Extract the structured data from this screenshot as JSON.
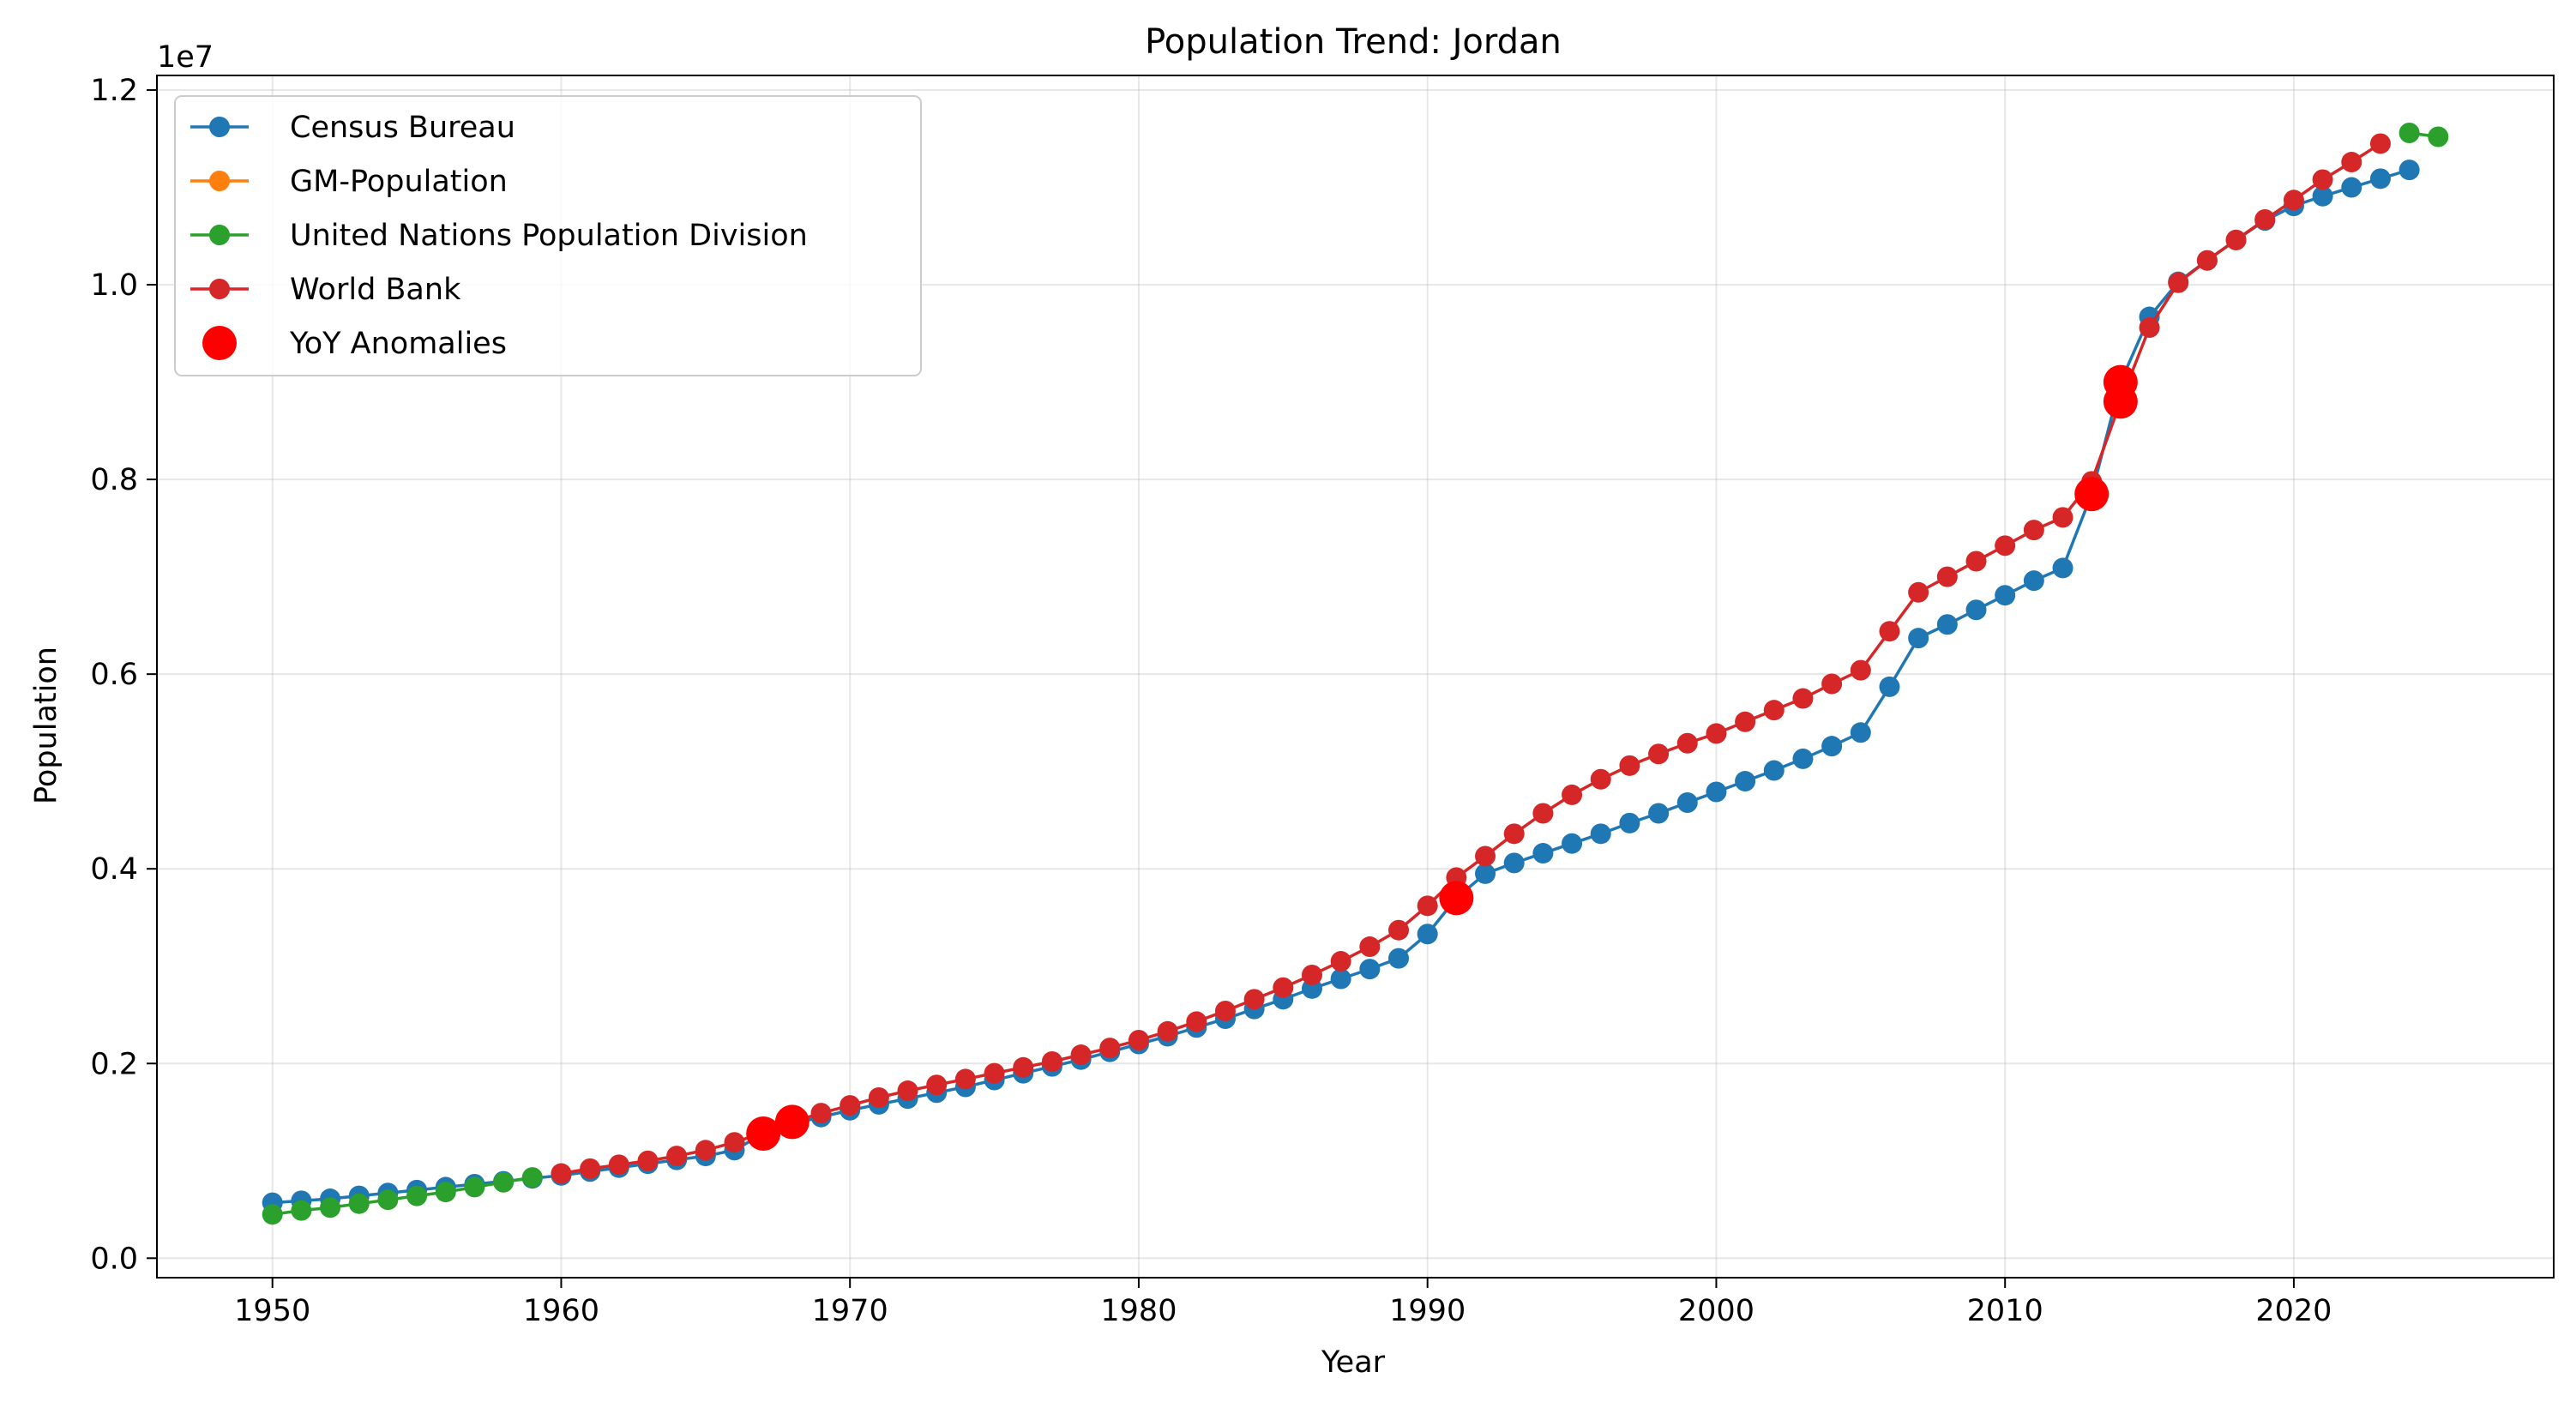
{
  "chart_data": {
    "type": "line",
    "title": "Population Trend: Jordan",
    "xlabel": "Year",
    "ylabel": "Population",
    "y_offset_text": "1e7",
    "xlim": [
      1946,
      2029
    ],
    "ylim": [
      -0.02,
      1.215
    ],
    "y_scale_multiplier": 10000000,
    "grid": true,
    "legend_position": "top-left",
    "x_ticks": [
      1950,
      1960,
      1970,
      1980,
      1990,
      2000,
      2010,
      2020
    ],
    "y_ticks": [
      0.0,
      0.2,
      0.4,
      0.6,
      0.8,
      1.0,
      1.2
    ],
    "y_tick_labels": [
      "0.0",
      "0.2",
      "0.4",
      "0.6",
      "0.8",
      "1.0",
      "1.2"
    ],
    "series": [
      {
        "name": "Census Bureau",
        "color": "#1f77b4",
        "x": [
          1950,
          1951,
          1952,
          1953,
          1954,
          1955,
          1956,
          1957,
          1958,
          1959,
          1960,
          1961,
          1962,
          1963,
          1964,
          1965,
          1966,
          1967,
          1968,
          1969,
          1970,
          1971,
          1972,
          1973,
          1974,
          1975,
          1976,
          1977,
          1978,
          1979,
          1980,
          1981,
          1982,
          1983,
          1984,
          1985,
          1986,
          1987,
          1988,
          1989,
          1990,
          1991,
          1992,
          1993,
          1994,
          1995,
          1996,
          1997,
          1998,
          1999,
          2000,
          2001,
          2002,
          2003,
          2004,
          2005,
          2006,
          2007,
          2008,
          2009,
          2010,
          2011,
          2012,
          2013,
          2014,
          2015,
          2016,
          2017,
          2018,
          2019,
          2020,
          2021,
          2022,
          2023,
          2024
        ],
        "y": [
          0.057,
          0.059,
          0.061,
          0.064,
          0.067,
          0.07,
          0.073,
          0.076,
          0.079,
          0.082,
          0.085,
          0.089,
          0.093,
          0.097,
          0.101,
          0.105,
          0.111,
          0.128,
          0.138,
          0.145,
          0.152,
          0.158,
          0.164,
          0.17,
          0.176,
          0.183,
          0.19,
          0.197,
          0.204,
          0.212,
          0.22,
          0.228,
          0.237,
          0.246,
          0.256,
          0.266,
          0.277,
          0.287,
          0.297,
          0.308,
          0.333,
          0.37,
          0.395,
          0.406,
          0.416,
          0.426,
          0.436,
          0.447,
          0.457,
          0.468,
          0.479,
          0.49,
          0.501,
          0.513,
          0.526,
          0.54,
          0.587,
          0.637,
          0.651,
          0.666,
          0.681,
          0.696,
          0.709,
          0.785,
          0.9,
          0.967,
          1.003,
          1.025,
          1.046,
          1.066,
          1.081,
          1.091,
          1.1,
          1.109,
          1.118
        ]
      },
      {
        "name": "GM-Population",
        "color": "#ff7f0e",
        "x": [],
        "y": []
      },
      {
        "name": "United Nations Population Division",
        "color": "#2ca02c",
        "x": [
          1950,
          1951,
          1952,
          1953,
          1954,
          1955,
          1956,
          1957,
          1958,
          1959,
          2024,
          2025
        ],
        "y": [
          0.045,
          0.049,
          0.052,
          0.056,
          0.06,
          0.064,
          0.068,
          0.073,
          0.078,
          0.083,
          1.156,
          1.152
        ]
      },
      {
        "name": "World Bank",
        "color": "#d62728",
        "x": [
          1960,
          1961,
          1962,
          1963,
          1964,
          1965,
          1966,
          1967,
          1968,
          1969,
          1970,
          1971,
          1972,
          1973,
          1974,
          1975,
          1976,
          1977,
          1978,
          1979,
          1980,
          1981,
          1982,
          1983,
          1984,
          1985,
          1986,
          1987,
          1988,
          1989,
          1990,
          1991,
          1992,
          1993,
          1994,
          1995,
          1996,
          1997,
          1998,
          1999,
          2000,
          2001,
          2002,
          2003,
          2004,
          2005,
          2006,
          2007,
          2008,
          2009,
          2010,
          2011,
          2012,
          2013,
          2014,
          2015,
          2016,
          2017,
          2018,
          2019,
          2020,
          2021,
          2022,
          2023
        ],
        "y": [
          0.087,
          0.092,
          0.096,
          0.1,
          0.105,
          0.111,
          0.119,
          0.129,
          0.14,
          0.149,
          0.157,
          0.165,
          0.172,
          0.178,
          0.184,
          0.19,
          0.196,
          0.202,
          0.209,
          0.216,
          0.224,
          0.233,
          0.243,
          0.254,
          0.266,
          0.278,
          0.291,
          0.305,
          0.32,
          0.337,
          0.362,
          0.391,
          0.413,
          0.436,
          0.457,
          0.476,
          0.492,
          0.506,
          0.518,
          0.529,
          0.539,
          0.551,
          0.563,
          0.575,
          0.59,
          0.604,
          0.644,
          0.684,
          0.7,
          0.716,
          0.732,
          0.748,
          0.761,
          0.798,
          0.88,
          0.956,
          1.002,
          1.025,
          1.046,
          1.067,
          1.087,
          1.108,
          1.126,
          1.145
        ]
      }
    ],
    "anomalies": {
      "name": "YoY Anomalies",
      "color": "#ff0000",
      "x": [
        1967,
        1968,
        1991,
        2013,
        2014,
        2014
      ],
      "y": [
        0.128,
        0.14,
        0.37,
        0.785,
        0.88,
        0.9
      ]
    }
  }
}
